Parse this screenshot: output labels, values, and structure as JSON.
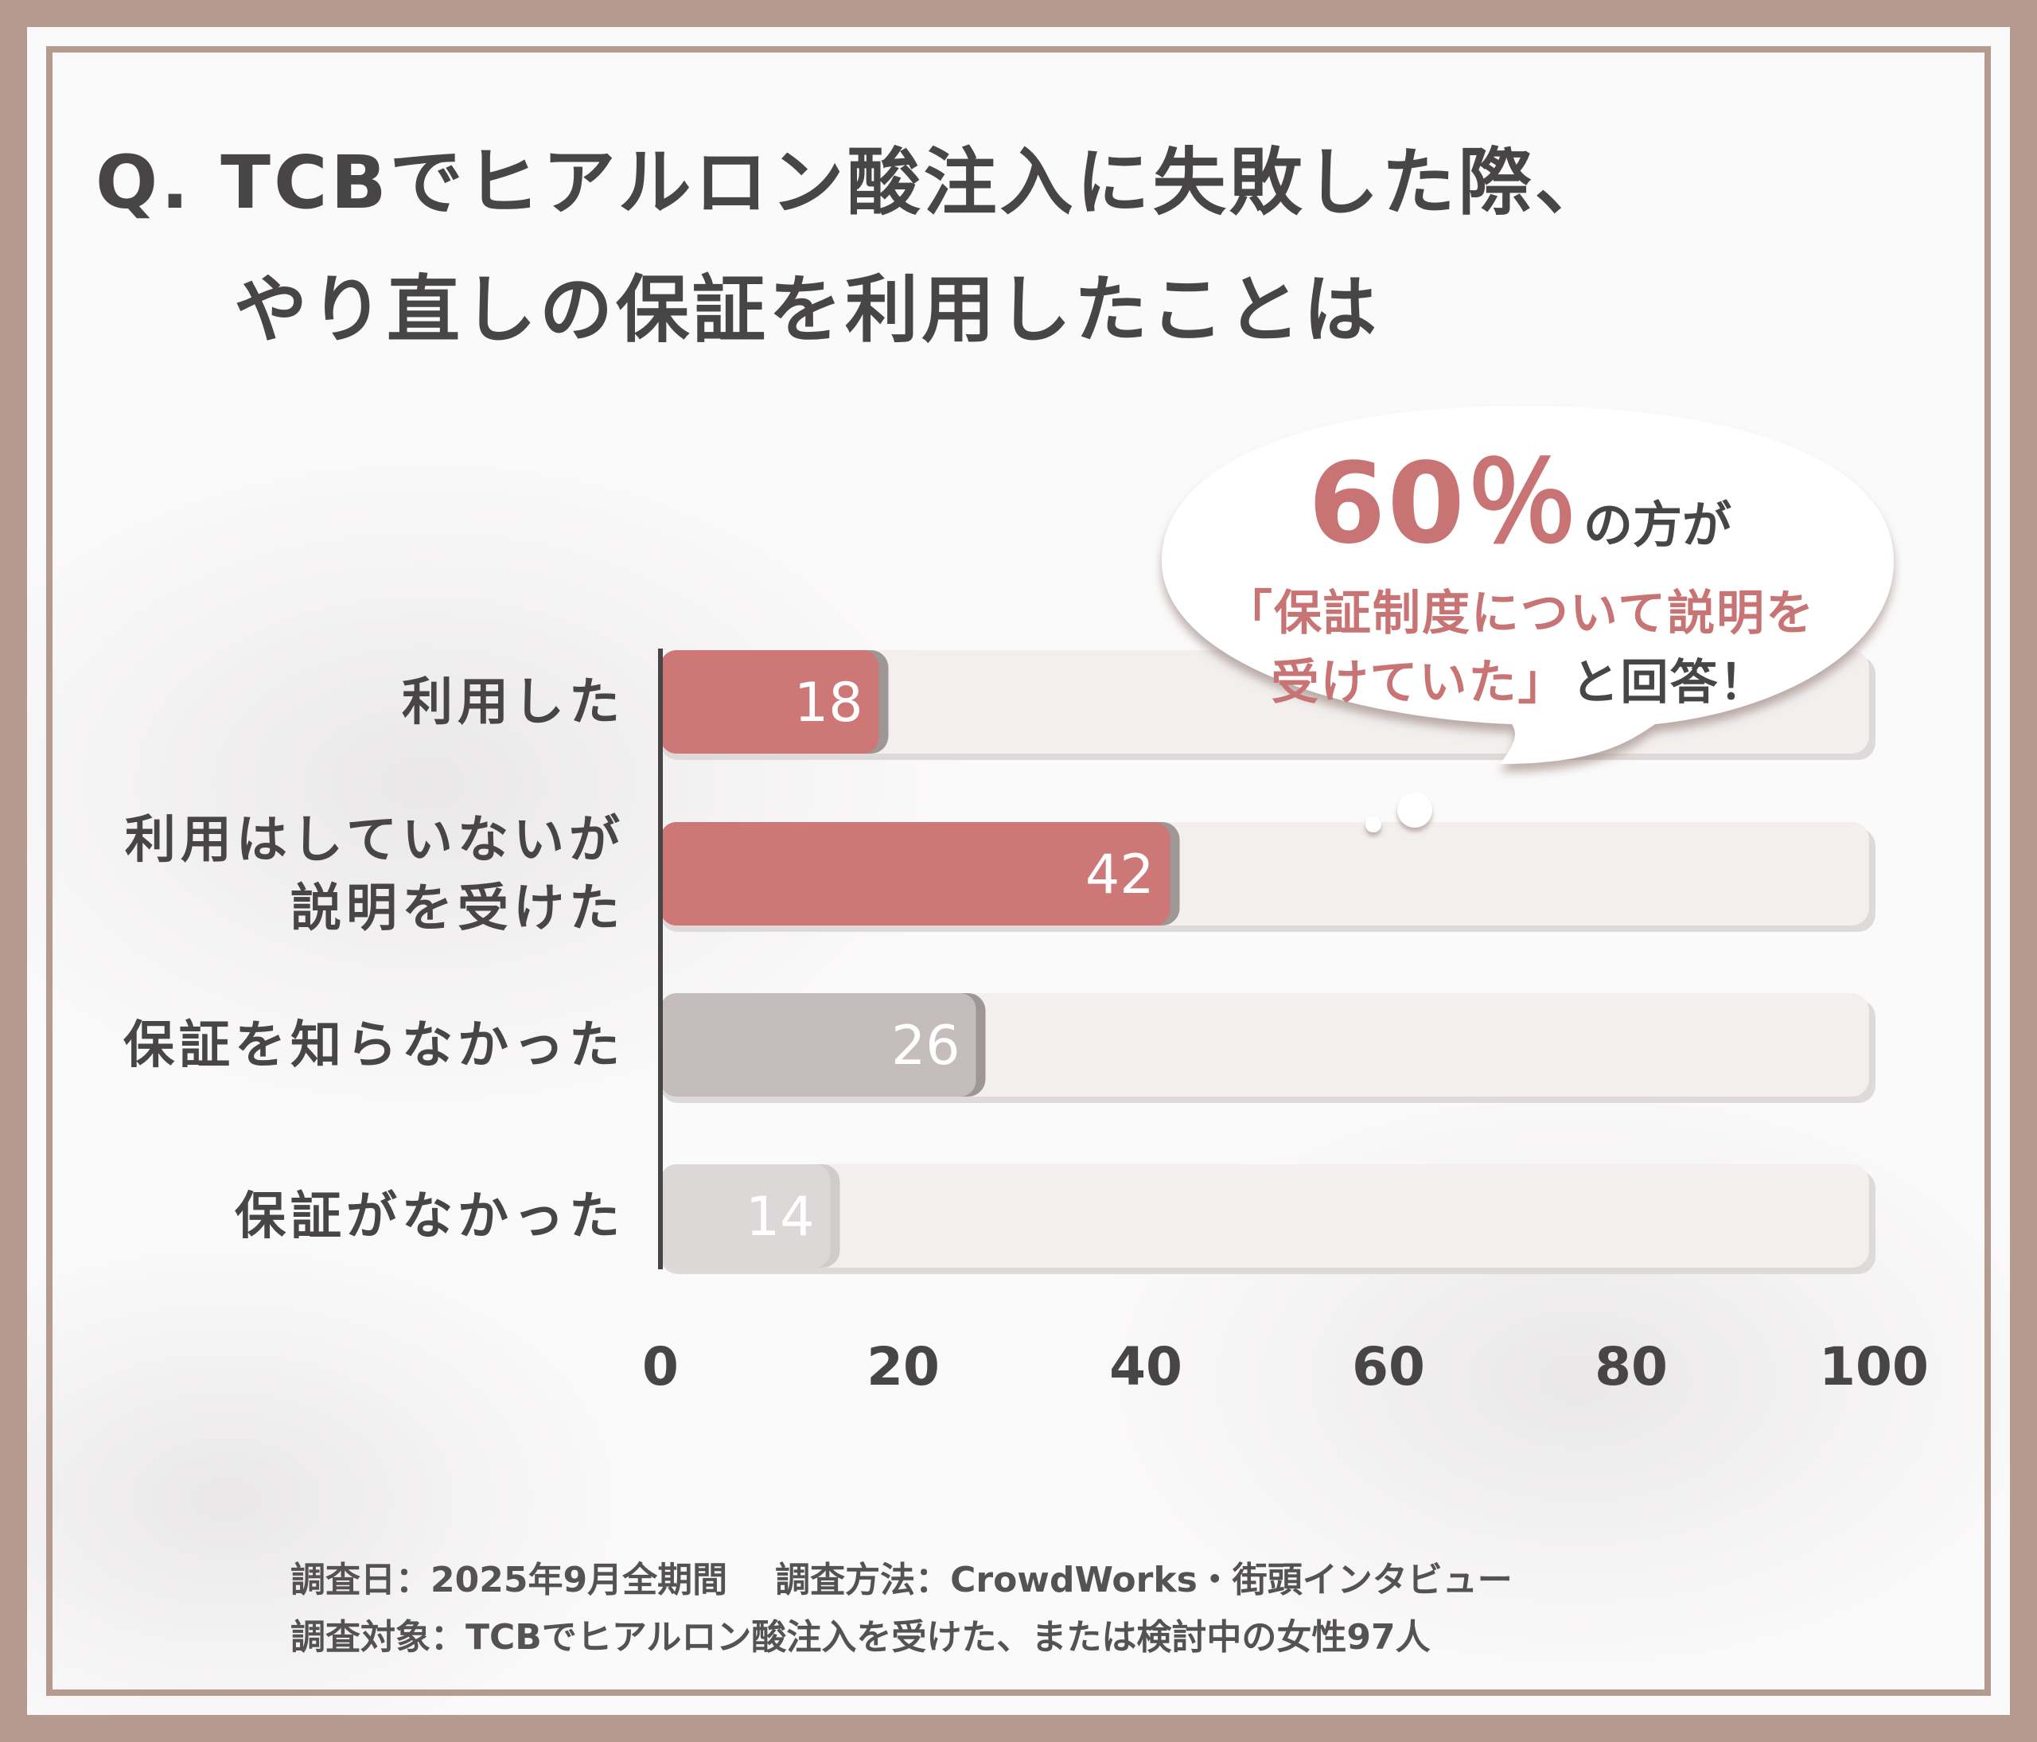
{
  "title": {
    "line1": "Q. TCBでヒアルロン酸注入に失敗した際、",
    "line2": "やり直しの保証を利用したことは"
  },
  "callout": {
    "percent": "60％",
    "percent_suffix": "の方が",
    "quote_line1": "「保証制度について説明を",
    "quote_line2": "受けていた」",
    "quote_tail": "と回答！"
  },
  "footer": {
    "date": "調査日：2025年9月全期間",
    "method": "調査方法：CrowdWorks・街頭インタビュー",
    "target": "調査対象：TCBでヒアルロン酸注入を受けた、または検討中の女性97人"
  },
  "colors": {
    "highlight": "#cd7776",
    "neutral": "#c4bdbc",
    "light": "#dcd8d8",
    "track": "#f2efee",
    "text": "#474545",
    "frame": "#b59b8f"
  },
  "chart_data": {
    "type": "bar",
    "orientation": "horizontal",
    "categories": [
      "利用した",
      "利用はしていないが説明を受けた",
      "保証を知らなかった",
      "保証がなかった"
    ],
    "category_lines": [
      [
        "利用した"
      ],
      [
        "利用はしていないが",
        "説明を受けた"
      ],
      [
        "保証を知らなかった"
      ],
      [
        "保証がなかった"
      ]
    ],
    "values": [
      18,
      42,
      26,
      14
    ],
    "value_labels": [
      "18",
      "42",
      "26",
      "14"
    ],
    "bar_colors": [
      "#cd7776",
      "#cd7776",
      "#c4bdbc",
      "#dcd8d8"
    ],
    "xlim": [
      0,
      100
    ],
    "xticks": [
      0,
      20,
      40,
      60,
      80,
      100
    ],
    "xtick_labels": [
      "0",
      "20",
      "40",
      "60",
      "80",
      "100"
    ],
    "grid": false,
    "legend": "none"
  }
}
